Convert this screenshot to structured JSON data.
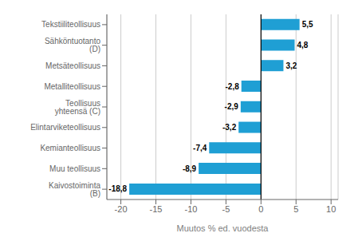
{
  "chart_data": {
    "type": "bar",
    "orientation": "horizontal",
    "categories": [
      "Kaivostoiminta (B)",
      "Muu teollisuus",
      "Kemianteollisuus",
      "Elintarviketeollisuus",
      "Teollisuus yhteensä (C)",
      "Metalliteollisuus",
      "Metsäteollisuus",
      "Sähköntuotanto (D)",
      "Tekstiiliteollisuus"
    ],
    "values": [
      -18.8,
      -8.9,
      -7.4,
      -3.2,
      -2.9,
      -2.8,
      3.2,
      4.8,
      5.5
    ],
    "value_labels": [
      "-18,8",
      "-8,9",
      "-7,4",
      "-3,2",
      "-2,9",
      "-2,8",
      "3,2",
      "4,8",
      "5,5"
    ],
    "data_labels": true,
    "color": "#1f9fd4",
    "xlabel": "Muutos % ed. vuodesta",
    "xlim": [
      -22,
      11
    ],
    "xticks": [
      -20,
      -15,
      -10,
      -5,
      0,
      5,
      10
    ],
    "grid": true
  }
}
